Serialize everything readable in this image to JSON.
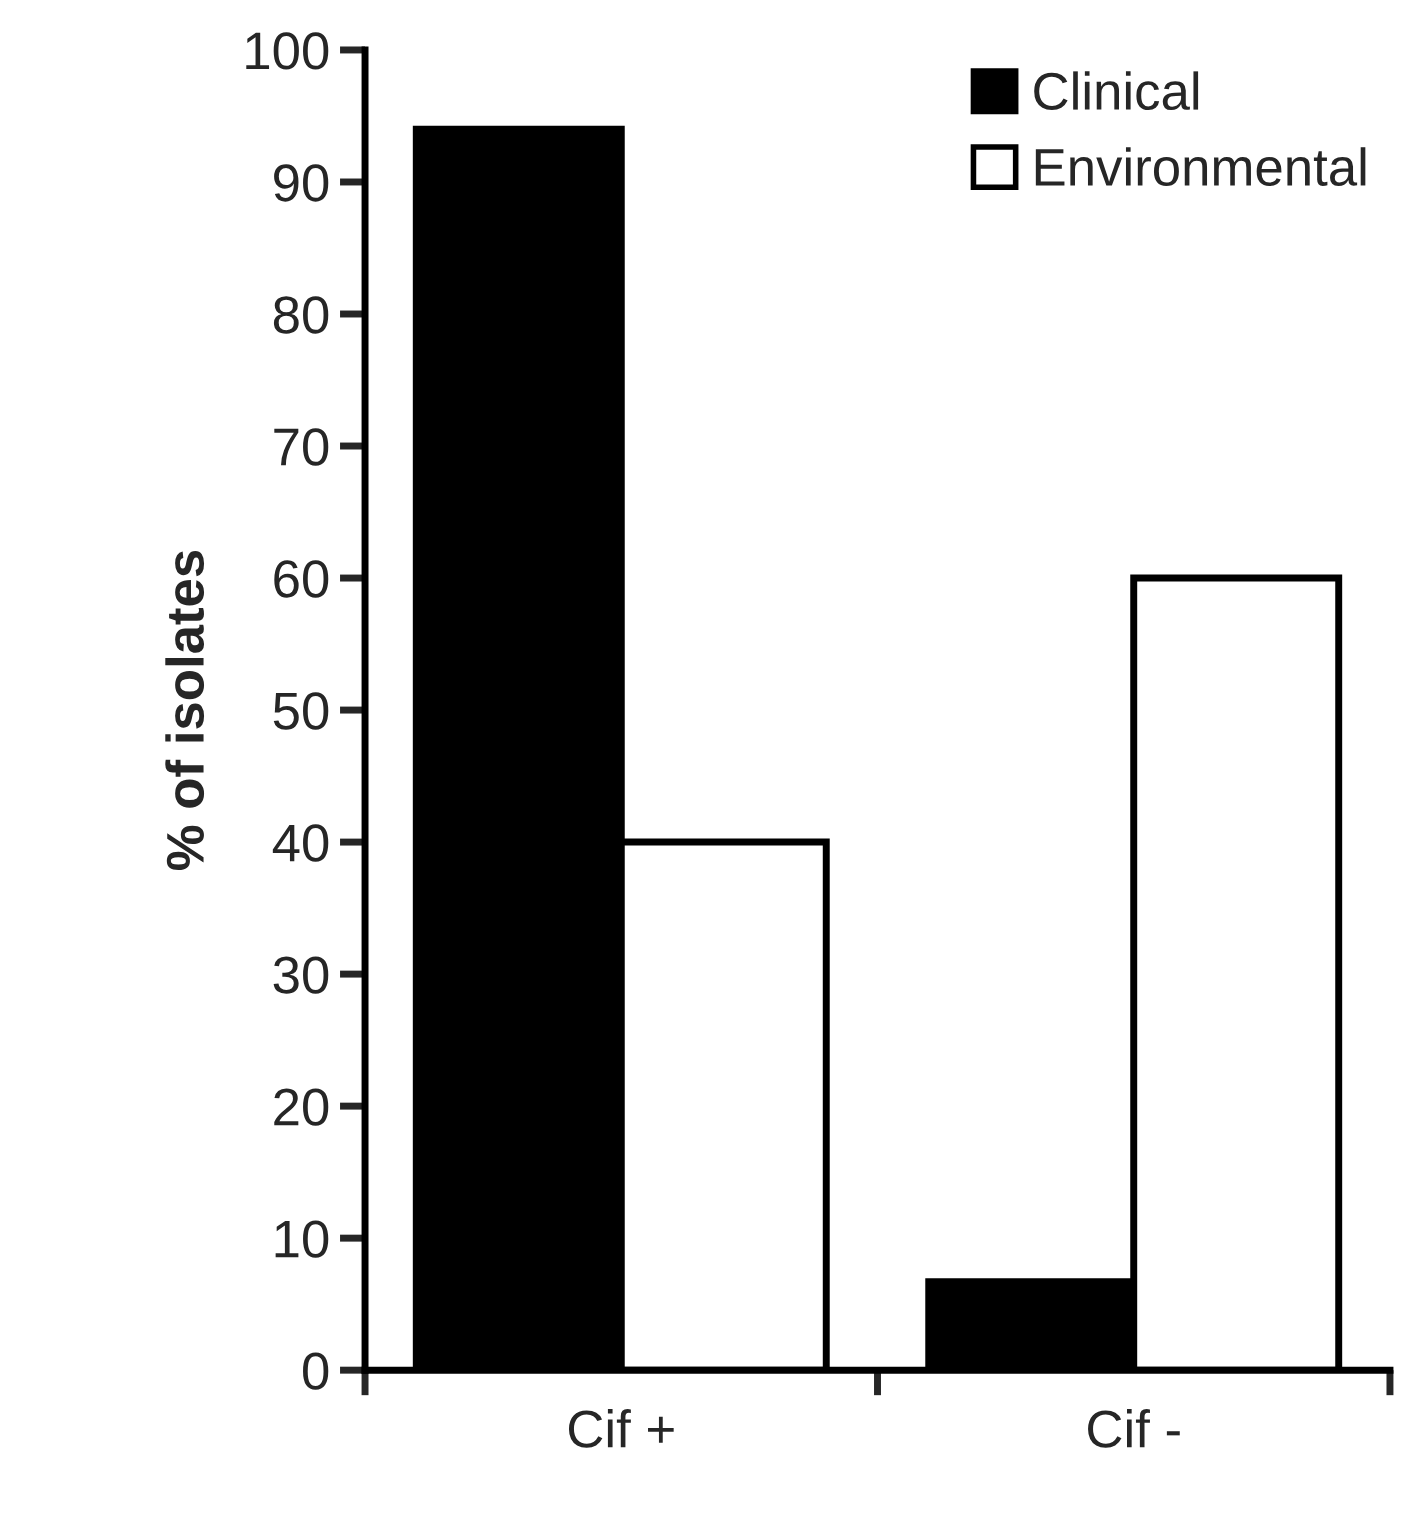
{
  "chart_data": {
    "type": "bar",
    "ylabel": "% of isolates",
    "categories": [
      "Cif +",
      "Cif -"
    ],
    "series": [
      {
        "name": "Clinical",
        "color": "#000000",
        "values": [
          94,
          6.7
        ]
      },
      {
        "name": "Environmental",
        "color": "#ffffff",
        "values": [
          40,
          60
        ]
      }
    ],
    "ylim": [
      0,
      100
    ],
    "yticks": [
      0,
      10,
      20,
      30,
      40,
      50,
      60,
      70,
      80,
      90,
      100
    ],
    "grid": false,
    "legend": "top right"
  }
}
